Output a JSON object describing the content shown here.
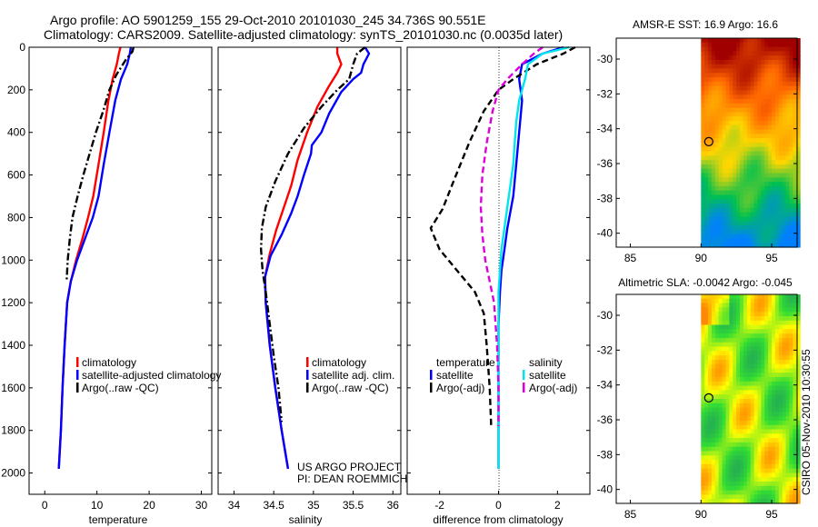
{
  "header": {
    "title_line1": "Argo profile: AO 5901259_155 29-Oct-2010 20101030_245 34.736S 90.551E",
    "title_line2": "Climatology: CARS2009. Satellite-adjusted climatology: synTS_20101030.nc (0.0035d later)"
  },
  "chart_data": [
    {
      "id": "temperature",
      "type": "line",
      "xlabel": "temperature",
      "ylabel": "",
      "xlim": [
        -3,
        32
      ],
      "ylim": [
        2100,
        0
      ],
      "xticks": [
        0,
        10,
        20,
        30
      ],
      "yticks": [
        0,
        200,
        400,
        600,
        800,
        1000,
        1200,
        1400,
        1600,
        1800,
        2000
      ],
      "legend": [
        "climatology",
        "satellite-adjusted climatology",
        "Argo(..raw -QC)"
      ],
      "legend_position": "lower-right",
      "series": [
        {
          "name": "climatology",
          "color": "#ff0000",
          "style": "solid",
          "points": [
            [
              14.5,
              0
            ],
            [
              14.2,
              30
            ],
            [
              13.8,
              80
            ],
            [
              13.0,
              150
            ],
            [
              12.2,
              250
            ],
            [
              11.3,
              400
            ],
            [
              10.3,
              550
            ],
            [
              9.3,
              700
            ],
            [
              8.3,
              800
            ],
            [
              7.2,
              900
            ],
            [
              6.0,
              1000
            ],
            [
              5.0,
              1100
            ],
            [
              4.3,
              1200
            ],
            [
              3.8,
              1400
            ],
            [
              3.4,
              1600
            ],
            [
              3.1,
              1800
            ],
            [
              2.7,
              1980
            ]
          ]
        },
        {
          "name": "satellite-adjusted climatology",
          "color": "#0000ff",
          "style": "solid",
          "points": [
            [
              16.5,
              0
            ],
            [
              16.3,
              30
            ],
            [
              15.8,
              80
            ],
            [
              14.6,
              150
            ],
            [
              13.5,
              250
            ],
            [
              12.4,
              400
            ],
            [
              11.3,
              550
            ],
            [
              10.3,
              700
            ],
            [
              9.2,
              800
            ],
            [
              7.7,
              900
            ],
            [
              6.2,
              1000
            ],
            [
              5.0,
              1100
            ],
            [
              4.3,
              1200
            ],
            [
              3.8,
              1400
            ],
            [
              3.4,
              1600
            ],
            [
              3.1,
              1800
            ],
            [
              2.7,
              1980
            ]
          ]
        },
        {
          "name": "Argo(..raw -QC)",
          "color": "#000000",
          "style": "dashdot",
          "points": [
            [
              17.0,
              0
            ],
            [
              16.8,
              20
            ],
            [
              15.5,
              60
            ],
            [
              13.7,
              130
            ],
            [
              12.4,
              200
            ],
            [
              11.2,
              300
            ],
            [
              9.8,
              400
            ],
            [
              8.6,
              500
            ],
            [
              7.4,
              600
            ],
            [
              6.3,
              700
            ],
            [
              5.3,
              800
            ],
            [
              4.8,
              900
            ],
            [
              4.4,
              1000
            ],
            [
              4.2,
              1100
            ]
          ]
        }
      ]
    },
    {
      "id": "salinity",
      "type": "line",
      "xlabel": "salinity",
      "ylabel": "",
      "xlim": [
        33.8,
        36.1
      ],
      "ylim": [
        2100,
        0
      ],
      "xticks": [
        34,
        34.5,
        35,
        35.5,
        36
      ],
      "yticks": [
        0,
        200,
        400,
        600,
        800,
        1000,
        1200,
        1400,
        1600,
        1800,
        2000
      ],
      "legend": [
        "climatology",
        "satellite adj. clim.",
        "Argo(..raw -QC)"
      ],
      "legend_position": "lower-right",
      "annotation": [
        "US ARGO PROJECT",
        "PI: DEAN ROEMMICH"
      ],
      "series": [
        {
          "name": "climatology",
          "color": "#ff0000",
          "style": "solid",
          "points": [
            [
              35.3,
              0
            ],
            [
              35.3,
              30
            ],
            [
              35.35,
              80
            ],
            [
              35.3,
              120
            ],
            [
              35.2,
              180
            ],
            [
              35.05,
              280
            ],
            [
              34.92,
              400
            ],
            [
              34.8,
              530
            ],
            [
              34.72,
              650
            ],
            [
              34.62,
              760
            ],
            [
              34.53,
              860
            ],
            [
              34.45,
              970
            ],
            [
              34.39,
              1080
            ],
            [
              34.4,
              1200
            ],
            [
              34.45,
              1400
            ],
            [
              34.52,
              1600
            ],
            [
              34.6,
              1800
            ],
            [
              34.68,
              1980
            ]
          ]
        },
        {
          "name": "satellite adj. clim.",
          "color": "#0000ff",
          "style": "solid",
          "points": [
            [
              35.65,
              0
            ],
            [
              35.7,
              30
            ],
            [
              35.63,
              80
            ],
            [
              35.6,
              120
            ],
            [
              35.5,
              150
            ],
            [
              35.35,
              210
            ],
            [
              35.2,
              310
            ],
            [
              35.1,
              400
            ],
            [
              34.98,
              460
            ],
            [
              34.97,
              500
            ],
            [
              34.88,
              600
            ],
            [
              34.8,
              700
            ],
            [
              34.72,
              780
            ],
            [
              34.6,
              880
            ],
            [
              34.46,
              980
            ],
            [
              34.39,
              1080
            ],
            [
              34.4,
              1200
            ],
            [
              34.45,
              1400
            ],
            [
              34.52,
              1600
            ],
            [
              34.6,
              1800
            ],
            [
              34.68,
              1980
            ]
          ]
        },
        {
          "name": "Argo(..raw -QC)",
          "color": "#000000",
          "style": "dashdot",
          "points": [
            [
              35.65,
              0
            ],
            [
              35.55,
              30
            ],
            [
              35.5,
              80
            ],
            [
              35.45,
              150
            ],
            [
              35.3,
              200
            ],
            [
              35.1,
              280
            ],
            [
              34.88,
              380
            ],
            [
              34.68,
              500
            ],
            [
              34.52,
              630
            ],
            [
              34.4,
              750
            ],
            [
              34.35,
              850
            ],
            [
              34.34,
              950
            ],
            [
              34.36,
              1050
            ],
            [
              34.4,
              1150
            ],
            [
              34.45,
              1300
            ],
            [
              34.5,
              1450
            ],
            [
              34.56,
              1600
            ],
            [
              34.6,
              1760
            ]
          ]
        }
      ]
    },
    {
      "id": "difference",
      "type": "line",
      "xlabel": "difference from climatology",
      "ylabel": "",
      "xlim": [
        -3.1,
        3.1
      ],
      "ylim": [
        2100,
        0
      ],
      "xticks": [
        -2,
        0,
        2
      ],
      "yticks": [
        0,
        200,
        400,
        600,
        800,
        1000,
        1200,
        1400,
        1600,
        1800,
        2000
      ],
      "legend_groups": [
        {
          "title": "temperature",
          "entries": [
            "satellite",
            "Argo(-adj)"
          ]
        },
        {
          "title": "salinity",
          "entries": [
            "satellite",
            "Argo(-adj)"
          ]
        }
      ],
      "legend_position": "lower-right",
      "series": [
        {
          "name": "temperature satellite",
          "color": "#0000ff",
          "style": "solid",
          "points": [
            [
              2.2,
              0
            ],
            [
              1.5,
              30
            ],
            [
              0.8,
              80
            ],
            [
              0.7,
              150
            ],
            [
              0.8,
              250
            ],
            [
              0.7,
              400
            ],
            [
              0.6,
              550
            ],
            [
              0.5,
              700
            ],
            [
              0.3,
              850
            ],
            [
              0.2,
              950
            ],
            [
              0.1,
              1050
            ],
            [
              0.05,
              1150
            ],
            [
              0,
              1300
            ],
            [
              0,
              1980
            ]
          ]
        },
        {
          "name": "temperature Argo(-adj)",
          "color": "#000000",
          "style": "dashed",
          "points": [
            [
              2.6,
              0
            ],
            [
              2.2,
              30
            ],
            [
              1.3,
              80
            ],
            [
              0.5,
              150
            ],
            [
              0,
              200
            ],
            [
              -0.5,
              300
            ],
            [
              -1.0,
              450
            ],
            [
              -1.5,
              620
            ],
            [
              -1.9,
              760
            ],
            [
              -2.3,
              850
            ],
            [
              -2.0,
              950
            ],
            [
              -1.4,
              1050
            ],
            [
              -0.8,
              1150
            ],
            [
              -0.5,
              1250
            ],
            [
              -0.4,
              1400
            ],
            [
              -0.3,
              1600
            ],
            [
              -0.25,
              1780
            ]
          ]
        },
        {
          "name": "salinity satellite",
          "color": "#00e5ee",
          "style": "solid",
          "points": [
            [
              2.4,
              0
            ],
            [
              1.5,
              30
            ],
            [
              1.0,
              80
            ],
            [
              0.9,
              150
            ],
            [
              0.7,
              250
            ],
            [
              0.6,
              350
            ],
            [
              0.55,
              450
            ],
            [
              0.5,
              550
            ],
            [
              0.4,
              650
            ],
            [
              0.3,
              750
            ],
            [
              0.2,
              850
            ],
            [
              0.1,
              950
            ],
            [
              0.05,
              1050
            ],
            [
              0,
              1150
            ],
            [
              0,
              1980
            ]
          ]
        },
        {
          "name": "salinity Argo(-adj)",
          "color": "#dd00dd",
          "style": "dashed",
          "points": [
            [
              1.5,
              0
            ],
            [
              1.2,
              30
            ],
            [
              0.8,
              80
            ],
            [
              0.3,
              150
            ],
            [
              0,
              200
            ],
            [
              -0.2,
              300
            ],
            [
              -0.4,
              450
            ],
            [
              -0.55,
              600
            ],
            [
              -0.6,
              750
            ],
            [
              -0.55,
              880
            ],
            [
              -0.45,
              1000
            ],
            [
              -0.3,
              1100
            ],
            [
              -0.15,
              1200
            ],
            [
              -0.05,
              1400
            ],
            [
              0,
              1600
            ],
            [
              0,
              1780
            ]
          ]
        }
      ]
    },
    {
      "id": "sst-map",
      "type": "heatmap",
      "title": "AMSR-E SST: 16.9 Argo: 16.6",
      "xlim": [
        84,
        96.8
      ],
      "ylim": [
        -40.8,
        -28.8
      ],
      "xticks": [
        85,
        90,
        95
      ],
      "yticks": [
        -30,
        -32,
        -34,
        -36,
        -38,
        -40
      ],
      "float_position": {
        "lon": 90.55,
        "lat": -34.74
      },
      "colors": [
        "#a00000",
        "#ff6600",
        "#ffd700",
        "#00c050",
        "#0080ff"
      ]
    },
    {
      "id": "sla-map",
      "type": "heatmap",
      "title": "Altimetric SLA: -0.0042 Argo: -0.045",
      "xlim": [
        84,
        96.8
      ],
      "ylim": [
        -40.8,
        -28.8
      ],
      "xticks": [
        85,
        90,
        95
      ],
      "yticks": [
        -30,
        -32,
        -34,
        -36,
        -38,
        -40
      ],
      "float_position": {
        "lon": 90.55,
        "lat": -34.74
      },
      "colors": [
        "#ff8800",
        "#ffff00",
        "#33dd33",
        "#22aa55"
      ]
    }
  ],
  "side_label": "CSIRO 05-Nov-2010 10:30:55"
}
